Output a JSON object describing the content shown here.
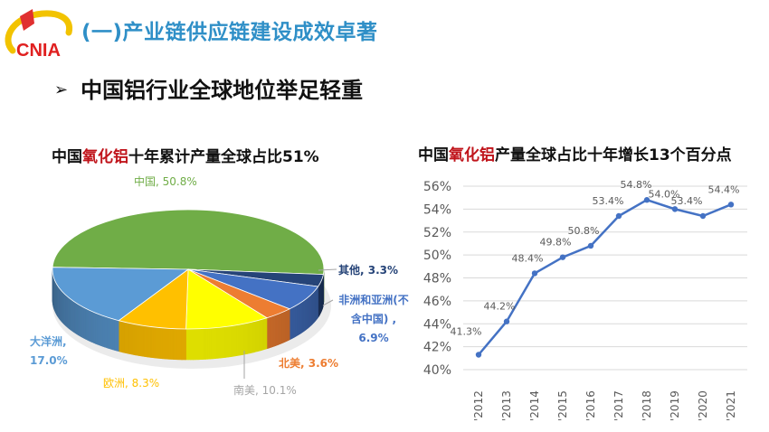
{
  "header": {
    "logo_text": "CNIA",
    "page_title": "(一)产业链供应链建设成效卓著",
    "section_bullet": "➢",
    "section_heading": "中国铝行业全球地位举足轻重"
  },
  "colors": {
    "title_blue": "#2f8fc7",
    "highlight_red": "#c0141b",
    "line_series": "#4472c4",
    "gridline": "#d9d9d9"
  },
  "chart_data": [
    {
      "type": "pie",
      "title": "中国氧化铝十年累计产量全球占比51%",
      "title_parts": {
        "prefix": "中国",
        "highlight": "氧化铝",
        "suffix": "十年累计产量全球占比51%"
      },
      "style": "3d",
      "slices": [
        {
          "label": "中国",
          "value": 50.8,
          "display": "中国, 50.8%",
          "color": "#70ad47",
          "label_color": "#70ad47"
        },
        {
          "label": "其他",
          "value": 3.3,
          "display": "其他, 3.3%",
          "color": "#264478",
          "label_color": "#264478"
        },
        {
          "label": "非洲和亚洲(不含中国)",
          "value": 6.9,
          "display_lines": [
            "非洲和亚洲(不",
            "含中国) ,",
            "6.9%"
          ],
          "color": "#4472c4",
          "label_color": "#4472c4"
        },
        {
          "label": "北美",
          "value": 3.6,
          "display": "北美, 3.6%",
          "color": "#ed7d31",
          "label_color": "#ed7d31"
        },
        {
          "label": "南美",
          "value": 10.1,
          "display": "南美, 10.1%",
          "color": "#ffff00",
          "label_color": "#a5a5a5"
        },
        {
          "label": "欧洲",
          "value": 8.3,
          "display": "欧洲, 8.3%",
          "color": "#ffc000",
          "label_color": "#ffc000"
        },
        {
          "label": "大洋洲",
          "value": 17.0,
          "display_lines": [
            "大洋洲,",
            "17.0%"
          ],
          "color": "#5b9bd5",
          "label_color": "#5b9bd5"
        }
      ]
    },
    {
      "type": "line",
      "title": "中国氧化铝产量全球占比十年增长13个百分点",
      "title_parts": {
        "prefix": "中国",
        "highlight": "氧化铝",
        "suffix": "产量全球占比十年增长13个百分点"
      },
      "xlabel": "",
      "ylabel": "",
      "x": [
        "'2012",
        "'2013",
        "'2014",
        "'2015",
        "'2016",
        "'2017",
        "'2018",
        "'2019",
        "'2020",
        "'2021"
      ],
      "series": [
        {
          "name": "中国氧化铝产量全球占比",
          "values": [
            41.3,
            44.2,
            48.4,
            49.8,
            50.8,
            53.4,
            54.8,
            54.0,
            53.4,
            54.4
          ],
          "data_labels": [
            "41.3%",
            "44.2%",
            "48.4%",
            "49.8%",
            "50.8%",
            "53.4%",
            "54.8%",
            "54.0%",
            "53.4%",
            "54.4%"
          ]
        }
      ],
      "ylim": [
        40,
        56
      ],
      "yticks": [
        "40%",
        "42%",
        "44%",
        "46%",
        "48%",
        "50%",
        "52%",
        "54%",
        "56%"
      ],
      "grid": true,
      "legend": "none"
    }
  ]
}
